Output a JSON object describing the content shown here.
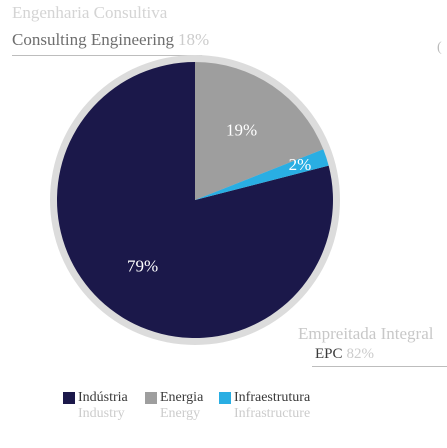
{
  "headers": {
    "top_pt": "Engenharia Consultiva",
    "top_en": "Consulting Engineering",
    "top_pct": "18%",
    "bottom_pt": "Empreitada Integral",
    "bottom_en": "EPC",
    "bottom_pct": "82%",
    "edge_mark": "("
  },
  "colors": {
    "outer_ring": "#dcdcdc",
    "industria": "#1b184a",
    "energia": "#9e9e9e",
    "infraestrutura": "#29aee3"
  },
  "chart_data": {
    "type": "pie",
    "slices": [
      {
        "label": "Indústria",
        "label_en": "Industry",
        "value": 79,
        "display": "79%",
        "color": "#1b184a"
      },
      {
        "label": "Energia",
        "label_en": "Energy",
        "value": 19,
        "display": "19%",
        "color": "#9e9e9e"
      },
      {
        "label": "Infraestrutura",
        "label_en": "Infrastructure",
        "value": 2,
        "display": "2%",
        "color": "#29aee3"
      }
    ],
    "legend_position": "bottom"
  }
}
